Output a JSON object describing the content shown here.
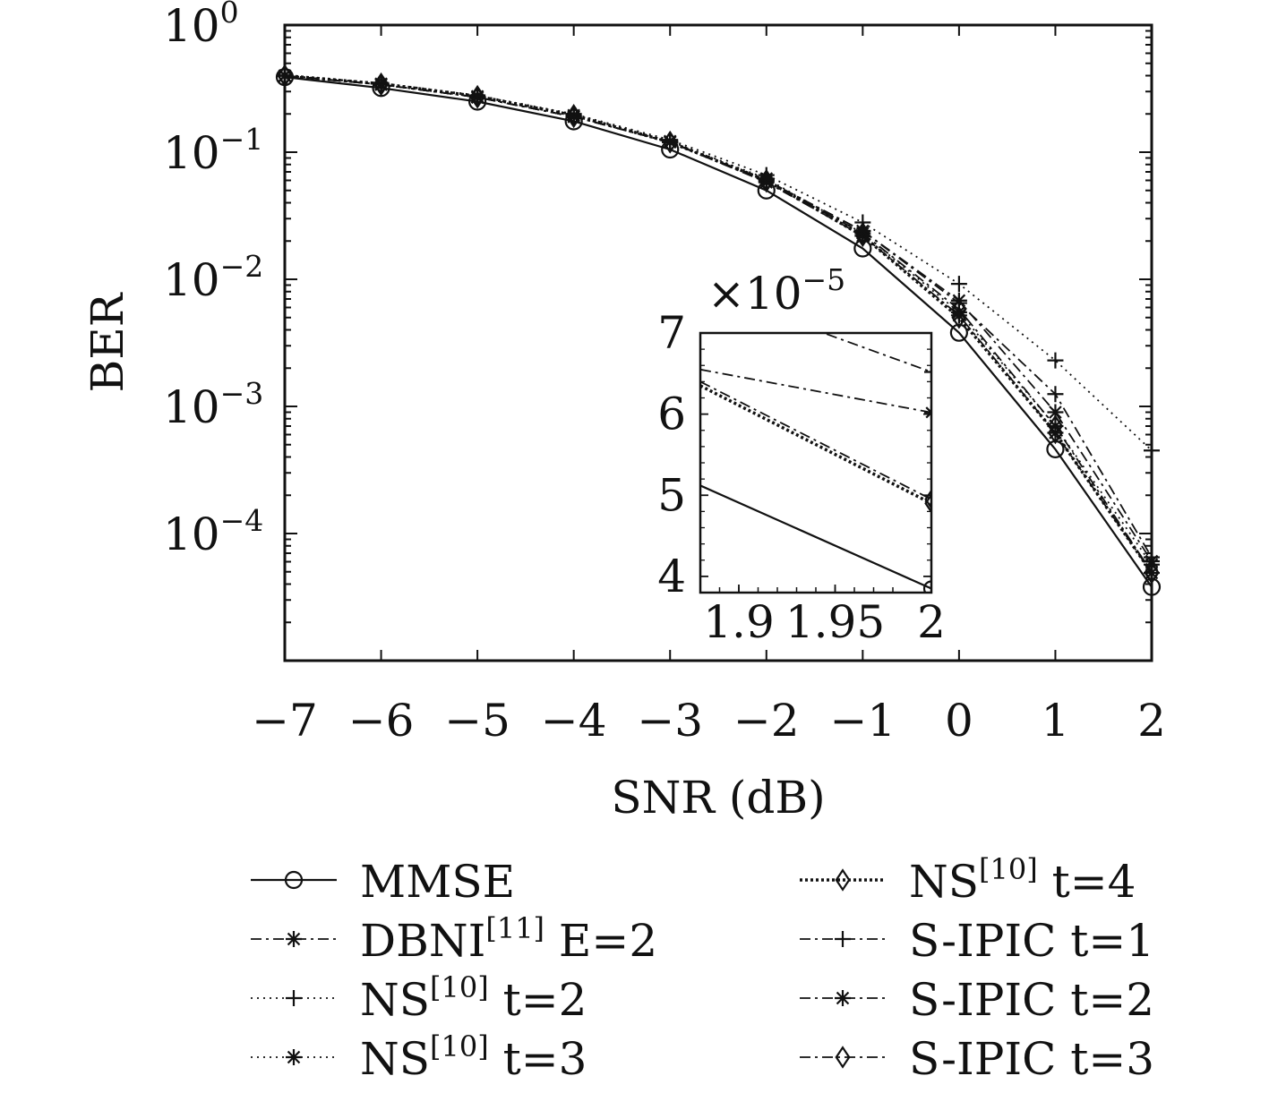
{
  "chart_data": [
    {
      "type": "line",
      "y_scale": "log",
      "xlabel": "SNR (dB)",
      "ylabel": "BER",
      "xlim": [
        -7,
        2
      ],
      "ylim": [
        1e-05,
        1
      ],
      "grid": false,
      "x_ticks": [
        "−7",
        "−6",
        "−5",
        "−4",
        "−3",
        "−2",
        "−1",
        "0",
        "1",
        "2"
      ],
      "x_tick_values": [
        -7,
        -6,
        -5,
        -4,
        -3,
        -2,
        -1,
        0,
        1,
        2
      ],
      "y_ticks": [
        {
          "value": 1,
          "base": "10",
          "exp": "0"
        },
        {
          "value": 0.1,
          "base": "10",
          "exp": "−1"
        },
        {
          "value": 0.01,
          "base": "10",
          "exp": "−2"
        },
        {
          "value": 0.001,
          "base": "10",
          "exp": "−3"
        },
        {
          "value": 0.0001,
          "base": "10",
          "exp": "−4"
        }
      ],
      "x": [
        -7,
        -6,
        -5,
        -4,
        -3,
        -2,
        -1,
        0,
        1,
        2
      ],
      "series": [
        {
          "name": "MMSE",
          "style": "solid",
          "marker": "circle",
          "values": [
            0.39,
            0.32,
            0.25,
            0.175,
            0.105,
            0.05,
            0.0175,
            0.0038,
            0.00046,
            3.8e-05
          ]
        },
        {
          "name": "DBNI E=2",
          "style": "dashdot",
          "marker": "asterisk",
          "values": [
            0.4,
            0.34,
            0.27,
            0.19,
            0.12,
            0.058,
            0.022,
            0.0052,
            0.00062,
            4.9e-05
          ]
        },
        {
          "name": "NS t=2",
          "style": "dotted",
          "marker": "plus",
          "values": [
            0.4,
            0.35,
            0.28,
            0.2,
            0.125,
            0.066,
            0.028,
            0.0092,
            0.0023,
            0.00045
          ]
        },
        {
          "name": "NS t=3",
          "style": "dotted",
          "marker": "asterisk",
          "values": [
            0.4,
            0.345,
            0.275,
            0.195,
            0.122,
            0.062,
            0.023,
            0.0055,
            0.0007,
            5.7e-05
          ]
        },
        {
          "name": "NS t=4",
          "style": "dotted-bold",
          "marker": "diamond",
          "values": [
            0.4,
            0.345,
            0.275,
            0.195,
            0.12,
            0.06,
            0.022,
            0.005,
            0.00062,
            4.9e-05
          ]
        },
        {
          "name": "S-IPIC t=1",
          "style": "dashdot",
          "marker": "plus",
          "values": [
            0.4,
            0.34,
            0.27,
            0.19,
            0.12,
            0.06,
            0.024,
            0.0065,
            0.00125,
            6.5e-05
          ]
        },
        {
          "name": "S-IPIC t=2",
          "style": "dashdot",
          "marker": "asterisk",
          "values": [
            0.4,
            0.34,
            0.27,
            0.19,
            0.12,
            0.06,
            0.024,
            0.0068,
            0.0009,
            6.05e-05
          ]
        },
        {
          "name": "S-IPIC t=3",
          "style": "dashdot",
          "marker": "diamond",
          "values": [
            0.4,
            0.34,
            0.27,
            0.19,
            0.12,
            0.059,
            0.023,
            0.0058,
            0.0007,
            4.95e-05
          ]
        }
      ]
    },
    {
      "type": "line",
      "inset": true,
      "xlim": [
        1.88,
        2
      ],
      "ylim": [
        3.8,
        7
      ],
      "y_multiplier_base": "×10",
      "y_multiplier_exp": "−5",
      "x_ticks": [
        "1.9",
        "1.95",
        "2"
      ],
      "x_tick_values": [
        1.9,
        1.95,
        2
      ],
      "y_ticks": [
        "4",
        "5",
        "6",
        "7"
      ],
      "y_tick_values": [
        4,
        5,
        6,
        7
      ],
      "series": [
        {
          "name": "MMSE",
          "style": "solid",
          "marker": "circle",
          "x": [
            1.88,
            2
          ],
          "values": [
            5.12,
            3.85
          ]
        },
        {
          "name": "S-IPIC t=2",
          "style": "dashdot",
          "marker": "asterisk",
          "x": [
            1.88,
            2
          ],
          "values": [
            6.55,
            6.02
          ]
        },
        {
          "name": "S-IPIC t=1",
          "style": "dashdot",
          "marker": "plus",
          "x": [
            1.88,
            2
          ],
          "values": [
            7.55,
            6.52
          ]
        },
        {
          "name": "S-IPIC t=3",
          "style": "dashdot",
          "marker": "diamond",
          "x": [
            1.88,
            2
          ],
          "values": [
            6.4,
            4.95
          ]
        },
        {
          "name": "NS t=4",
          "style": "dotted-bold",
          "marker": "diamond",
          "x": [
            1.88,
            2
          ],
          "values": [
            6.35,
            4.9
          ]
        }
      ]
    }
  ],
  "legend": {
    "placement": "bottom",
    "items": [
      {
        "main": "MMSE",
        "sup": "",
        "tail": "",
        "style": "solid",
        "marker": "circle"
      },
      {
        "main": "NS",
        "sup": "[10]",
        "tail": "  t=4",
        "style": "dotted-bold",
        "marker": "diamond"
      },
      {
        "main": "DBNI",
        "sup": "[11]",
        "tail": " E=2",
        "style": "dashdot",
        "marker": "asterisk"
      },
      {
        "main": "S-IPIC",
        "sup": "",
        "tail": "  t=1",
        "style": "dashdot",
        "marker": "plus"
      },
      {
        "main": "NS",
        "sup": "[10]",
        "tail": "  t=2",
        "style": "dotted",
        "marker": "plus"
      },
      {
        "main": "S-IPIC",
        "sup": "",
        "tail": "  t=2",
        "style": "dashdot",
        "marker": "asterisk"
      },
      {
        "main": "NS",
        "sup": "[10]",
        "tail": "  t=3",
        "style": "dotted",
        "marker": "asterisk"
      },
      {
        "main": "S-IPIC",
        "sup": "",
        "tail": "  t=3",
        "style": "dashdot",
        "marker": "diamond"
      }
    ]
  }
}
